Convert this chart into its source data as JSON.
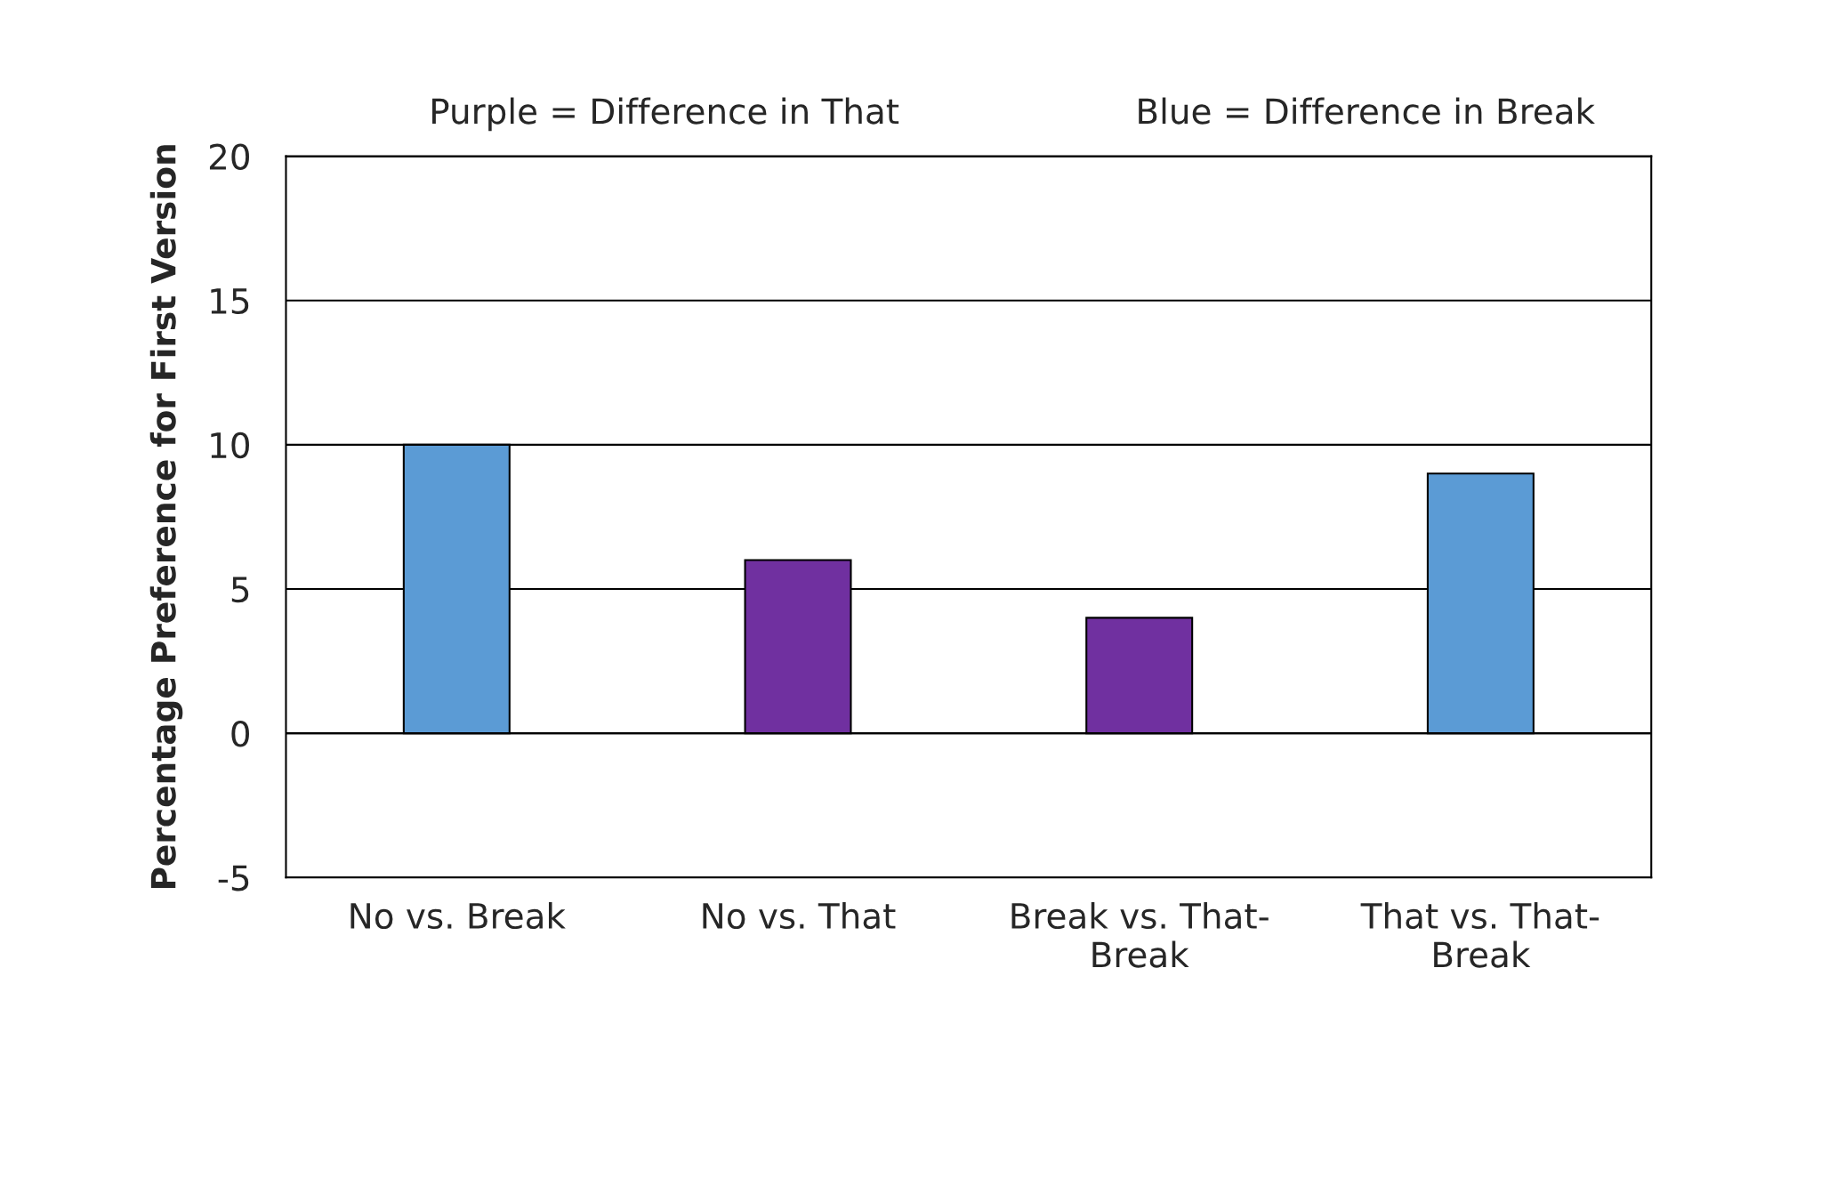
{
  "chart_data": {
    "type": "bar",
    "ylabel": "Percentage Preference for First Version",
    "annotations": [
      "Purple = Difference in That",
      "Blue = Difference in Break"
    ],
    "categories": [
      "No vs. Break",
      "No vs. That",
      "Break vs. That-\nBreak",
      "That vs. That-\nBreak"
    ],
    "values": [
      10,
      6,
      4,
      9
    ],
    "colors": [
      "#5b9bd5",
      "#7030a0",
      "#7030a0",
      "#5b9bd5"
    ],
    "ylim": [
      -5,
      20
    ],
    "yticks": [
      -5,
      0,
      5,
      10,
      15,
      20
    ],
    "grid": "y"
  }
}
